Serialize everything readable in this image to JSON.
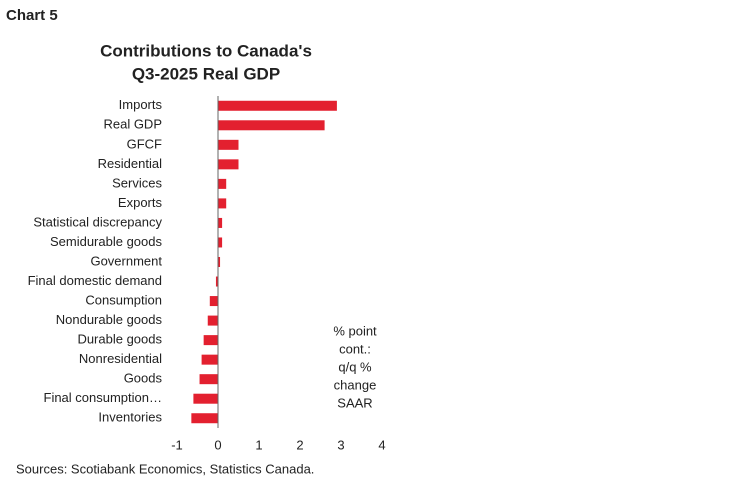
{
  "header": "Chart 5",
  "chart_data": {
    "type": "hbar",
    "title": [
      "Contributions to Canada's",
      "Q3-2025 Real GDP"
    ],
    "categories": [
      "Imports",
      "Real GDP",
      "GFCF",
      "Residential",
      "Services",
      "Exports",
      "Statistical discrepancy",
      "Semidurable goods",
      "Government",
      "Final domestic demand",
      "Consumption",
      "Nondurable goods",
      "Durable goods",
      "Nonresidential",
      "Goods",
      "Final consumption…",
      "Inventories"
    ],
    "values": [
      2.9,
      2.6,
      0.5,
      0.5,
      0.2,
      0.2,
      0.1,
      0.1,
      0.05,
      -0.05,
      -0.2,
      -0.25,
      -0.35,
      -0.4,
      -0.45,
      -0.6,
      -0.65
    ],
    "color": "#e3202f",
    "xlim": [
      -1,
      4
    ],
    "xticks": [
      -1,
      0,
      1,
      2,
      3,
      4
    ],
    "annotation": [
      "% point",
      "cont.:",
      "q/q %",
      "change",
      "SAAR"
    ]
  },
  "footer": "Sources: Scotiabank Economics, Statistics Canada."
}
